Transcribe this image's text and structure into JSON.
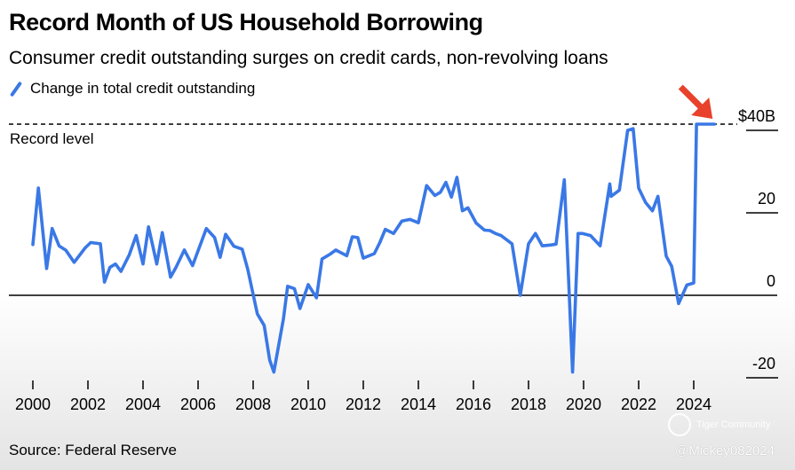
{
  "chart_data": {
    "type": "line",
    "title": "Record Month of US Household Borrowing",
    "subtitle": "Consumer credit outstanding surges on credit cards, non-revolving loans",
    "legend": "Change in total credit outstanding",
    "source": "Source: Federal Reserve",
    "record_label": "Record level",
    "y_tick_labels": [
      "$40B",
      "20",
      "0",
      "-20"
    ],
    "y_ticks": [
      40,
      20,
      0,
      -20
    ],
    "x_tick_labels": [
      "2000",
      "2002",
      "2004",
      "2006",
      "2008",
      "2010",
      "2012",
      "2014",
      "2016",
      "2018",
      "2020",
      "2022",
      "2024"
    ],
    "x_ticks": [
      2000,
      2002,
      2004,
      2006,
      2008,
      2010,
      2012,
      2014,
      2016,
      2018,
      2020,
      2022,
      2024
    ],
    "xlim": [
      1999.9,
      2025.8
    ],
    "ylim": [
      -20,
      44
    ],
    "record_value": 41.5,
    "colors": {
      "line": "#3a78e6",
      "arrow": "#e8412c"
    },
    "series": [
      {
        "name": "Change in total credit outstanding",
        "x": [
          2000.0,
          2000.2,
          2000.5,
          2000.7,
          2000.95,
          2001.2,
          2001.5,
          2001.9,
          2002.1,
          2002.45,
          2002.6,
          2002.8,
          2003.0,
          2003.2,
          2003.5,
          2003.75,
          2004.0,
          2004.2,
          2004.5,
          2004.7,
          2005.0,
          2005.2,
          2005.5,
          2005.8,
          2006.0,
          2006.3,
          2006.6,
          2006.8,
          2007.0,
          2007.3,
          2007.6,
          2007.8,
          2008.15,
          2008.4,
          2008.6,
          2008.75,
          2009.1,
          2009.25,
          2009.5,
          2009.7,
          2010.0,
          2010.3,
          2010.5,
          2010.8,
          2011.0,
          2011.4,
          2011.6,
          2011.8,
          2012.0,
          2012.4,
          2012.6,
          2012.8,
          2013.1,
          2013.4,
          2013.7,
          2014.0,
          2014.3,
          2014.6,
          2014.8,
          2015.0,
          2015.2,
          2015.4,
          2015.6,
          2015.8,
          2016.1,
          2016.4,
          2016.6,
          2016.8,
          2017.0,
          2017.4,
          2017.7,
          2018.0,
          2018.25,
          2018.5,
          2018.8,
          2019.0,
          2019.3,
          2019.6,
          2019.8,
          2019.95,
          2020.25,
          2020.6,
          2020.95,
          2021.0,
          2021.3,
          2021.6,
          2021.8,
          2022.0,
          2022.25,
          2022.5,
          2022.7,
          2023.0,
          2023.2,
          2023.45,
          2023.75,
          2024.0,
          2024.1,
          2024.35,
          2024.55,
          2024.75
        ],
        "values": [
          12.3,
          26.0,
          6.5,
          16.2,
          12.0,
          10.9,
          8.0,
          11.5,
          12.8,
          12.5,
          3.2,
          6.8,
          7.6,
          5.8,
          9.8,
          14.5,
          7.6,
          16.6,
          7.6,
          15.2,
          4.4,
          6.8,
          11.0,
          7.2,
          10.8,
          16.2,
          14.0,
          9.2,
          14.8,
          11.9,
          11.2,
          6.4,
          -4.5,
          -7.3,
          -15.7,
          -18.6,
          -5.7,
          2.2,
          1.6,
          -3.2,
          2.6,
          -0.6,
          8.8,
          10.0,
          11.0,
          9.6,
          14.2,
          14.0,
          9.0,
          10.1,
          12.8,
          16.0,
          15.0,
          18.0,
          18.4,
          17.6,
          26.6,
          24.2,
          25.0,
          27.4,
          23.8,
          28.6,
          20.5,
          21.2,
          17.5,
          15.8,
          15.7,
          15.0,
          14.5,
          12.5,
          0.0,
          12.5,
          15.0,
          12.0,
          12.2,
          12.4,
          28.0,
          -18.6,
          15.0,
          15.0,
          14.5,
          12.0,
          27.0,
          24.0,
          25.5,
          40.0,
          40.4,
          26.0,
          22.5,
          20.5,
          24.0,
          9.5,
          7.0,
          -2.0,
          2.5,
          3.0,
          41.5,
          41.5,
          41.5,
          41.5
        ]
      }
    ]
  },
  "watermark": {
    "community": "Tiger Community",
    "user": "@Mickey082024"
  }
}
